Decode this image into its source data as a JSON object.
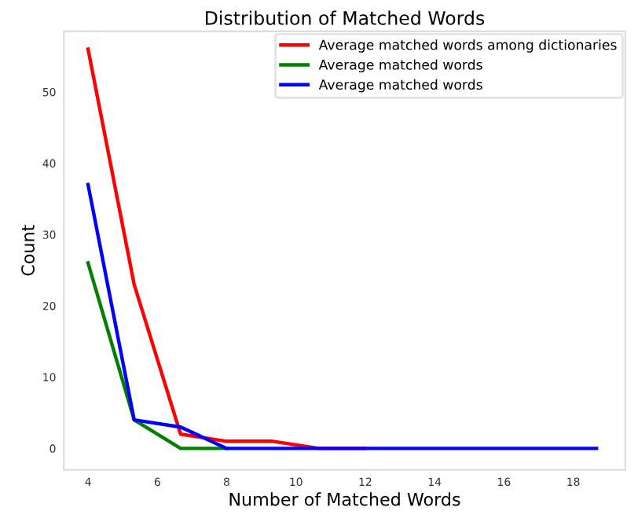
{
  "chart_data": {
    "type": "line",
    "title": "Distribution of Matched Words",
    "xlabel": "Number of Matched Words",
    "ylabel": "Count",
    "x": [
      4,
      5.33,
      6.67,
      8,
      9.33,
      10.67,
      12,
      13.33,
      14.67,
      16,
      17.33,
      18.67
    ],
    "series": [
      {
        "name": "Average matched words among dictionaries",
        "color": "#ff0000",
        "values": [
          56,
          23,
          2,
          1,
          1,
          0,
          0,
          null,
          null,
          null,
          null,
          null
        ]
      },
      {
        "name": "Average matched words",
        "color": "#008000",
        "values": [
          26,
          4,
          0,
          0,
          null,
          null,
          null,
          null,
          null,
          null,
          null,
          null
        ]
      },
      {
        "name": "Average matched words",
        "color": "#0000ff",
        "values": [
          37,
          4,
          3,
          0,
          0,
          0,
          0,
          0,
          0,
          0,
          0,
          0
        ]
      }
    ],
    "xlim": [
      3.3,
      19.5
    ],
    "ylim": [
      -3,
      58.5
    ],
    "xticks": [
      4,
      6,
      8,
      10,
      12,
      14,
      16,
      18
    ],
    "yticks": [
      0,
      10,
      20,
      30,
      40,
      50
    ],
    "grid": false,
    "legend": "top right",
    "marker": "none",
    "line_style": "solid"
  }
}
